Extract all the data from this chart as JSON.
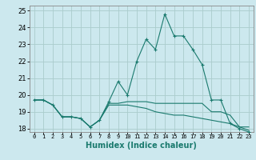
{
  "title": "",
  "xlabel": "Humidex (Indice chaleur)",
  "ylabel": "",
  "bg_color": "#cce8ee",
  "grid_color": "#aacccc",
  "line_color": "#1a7a6e",
  "xlim": [
    -0.5,
    23.5
  ],
  "ylim": [
    17.8,
    25.3
  ],
  "yticks": [
    18,
    19,
    20,
    21,
    22,
    23,
    24,
    25
  ],
  "xticks": [
    0,
    1,
    2,
    3,
    4,
    5,
    6,
    7,
    8,
    9,
    10,
    11,
    12,
    13,
    14,
    15,
    16,
    17,
    18,
    19,
    20,
    21,
    22,
    23
  ],
  "series": [
    {
      "x": [
        0,
        1,
        2,
        3,
        4,
        5,
        6,
        7,
        8,
        9,
        10,
        11,
        12,
        13,
        14,
        15,
        16,
        17,
        18,
        19,
        20,
        21,
        22,
        23
      ],
      "y": [
        19.7,
        19.7,
        19.4,
        18.7,
        18.7,
        18.6,
        18.1,
        18.5,
        19.6,
        20.8,
        20.0,
        22.0,
        23.3,
        22.7,
        24.8,
        23.5,
        23.5,
        22.7,
        21.8,
        19.7,
        19.7,
        18.3,
        18.0,
        17.8
      ],
      "marker": "+"
    },
    {
      "x": [
        0,
        1,
        2,
        3,
        4,
        5,
        6,
        7,
        8,
        9,
        10,
        11,
        12,
        13,
        14,
        15,
        16,
        17,
        18,
        19,
        20,
        21,
        22,
        23
      ],
      "y": [
        19.7,
        19.7,
        19.4,
        18.7,
        18.7,
        18.6,
        18.1,
        18.5,
        19.5,
        19.5,
        19.6,
        19.6,
        19.6,
        19.5,
        19.5,
        19.5,
        19.5,
        19.5,
        19.5,
        19.0,
        19.0,
        18.8,
        18.1,
        18.1
      ],
      "marker": null
    },
    {
      "x": [
        0,
        1,
        2,
        3,
        4,
        5,
        6,
        7,
        8,
        9,
        10,
        11,
        12,
        13,
        14,
        15,
        16,
        17,
        18,
        19,
        20,
        21,
        22,
        23
      ],
      "y": [
        19.7,
        19.7,
        19.4,
        18.7,
        18.7,
        18.6,
        18.1,
        18.5,
        19.4,
        19.4,
        19.4,
        19.3,
        19.2,
        19.0,
        18.9,
        18.8,
        18.8,
        18.7,
        18.6,
        18.5,
        18.4,
        18.3,
        18.1,
        17.9
      ],
      "marker": null
    }
  ],
  "xlabel_fontsize": 7,
  "ytick_fontsize": 6,
  "xtick_fontsize": 5
}
